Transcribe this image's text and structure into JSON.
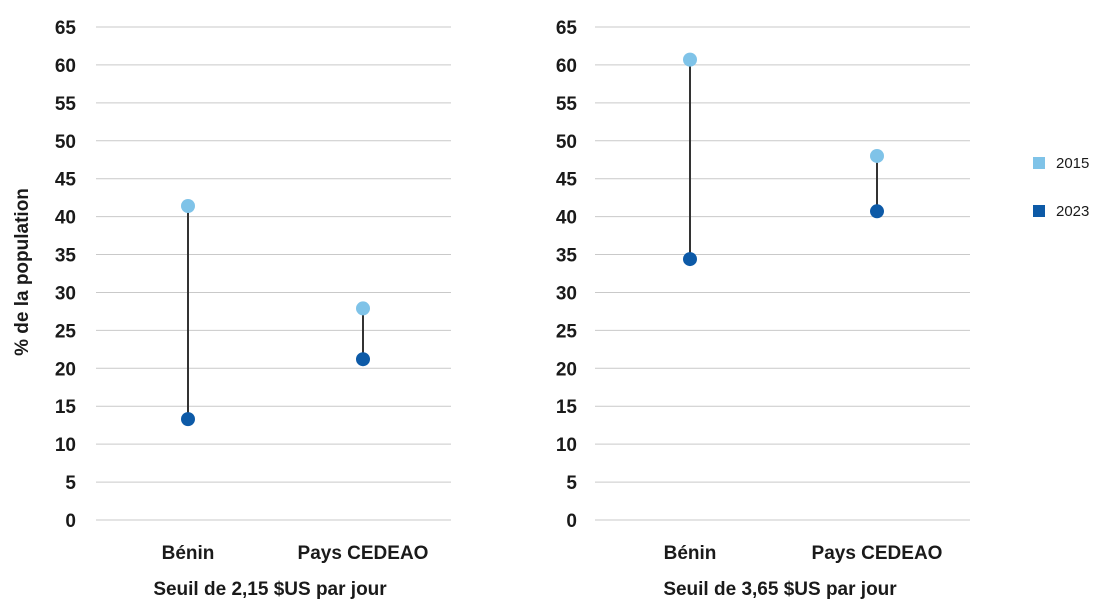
{
  "colors": {
    "series_2015": "#7fc3e8",
    "series_2023": "#0d5aa7"
  },
  "ylabel": "% de la population",
  "legend": {
    "placement": "right",
    "items": [
      "2015",
      "2023"
    ]
  },
  "chart_data": [
    {
      "type": "dumbbell",
      "subtitle": "Seuil de 2,15 $US par jour",
      "categories": [
        "Bénin",
        "Pays CEDEAO"
      ],
      "yticks": [
        "0",
        "5",
        "10",
        "15",
        "20",
        "25",
        "30",
        "35",
        "40",
        "45",
        "50",
        "55",
        "60",
        "65"
      ],
      "ylim": [
        0,
        65
      ],
      "grid": true,
      "series": [
        {
          "name": "2015",
          "values": [
            41.4,
            27.9
          ]
        },
        {
          "name": "2023",
          "values": [
            13.3,
            21.2
          ]
        }
      ]
    },
    {
      "type": "dumbbell",
      "subtitle": "Seuil de 3,65 $US par jour",
      "categories": [
        "Bénin",
        "Pays CEDEAO"
      ],
      "yticks": [
        "0",
        "5",
        "10",
        "15",
        "20",
        "25",
        "30",
        "35",
        "40",
        "45",
        "50",
        "55",
        "60",
        "65"
      ],
      "ylim": [
        0,
        65
      ],
      "grid": true,
      "series": [
        {
          "name": "2015",
          "values": [
            60.7,
            48.0
          ]
        },
        {
          "name": "2023",
          "values": [
            34.4,
            40.7
          ]
        }
      ]
    }
  ]
}
